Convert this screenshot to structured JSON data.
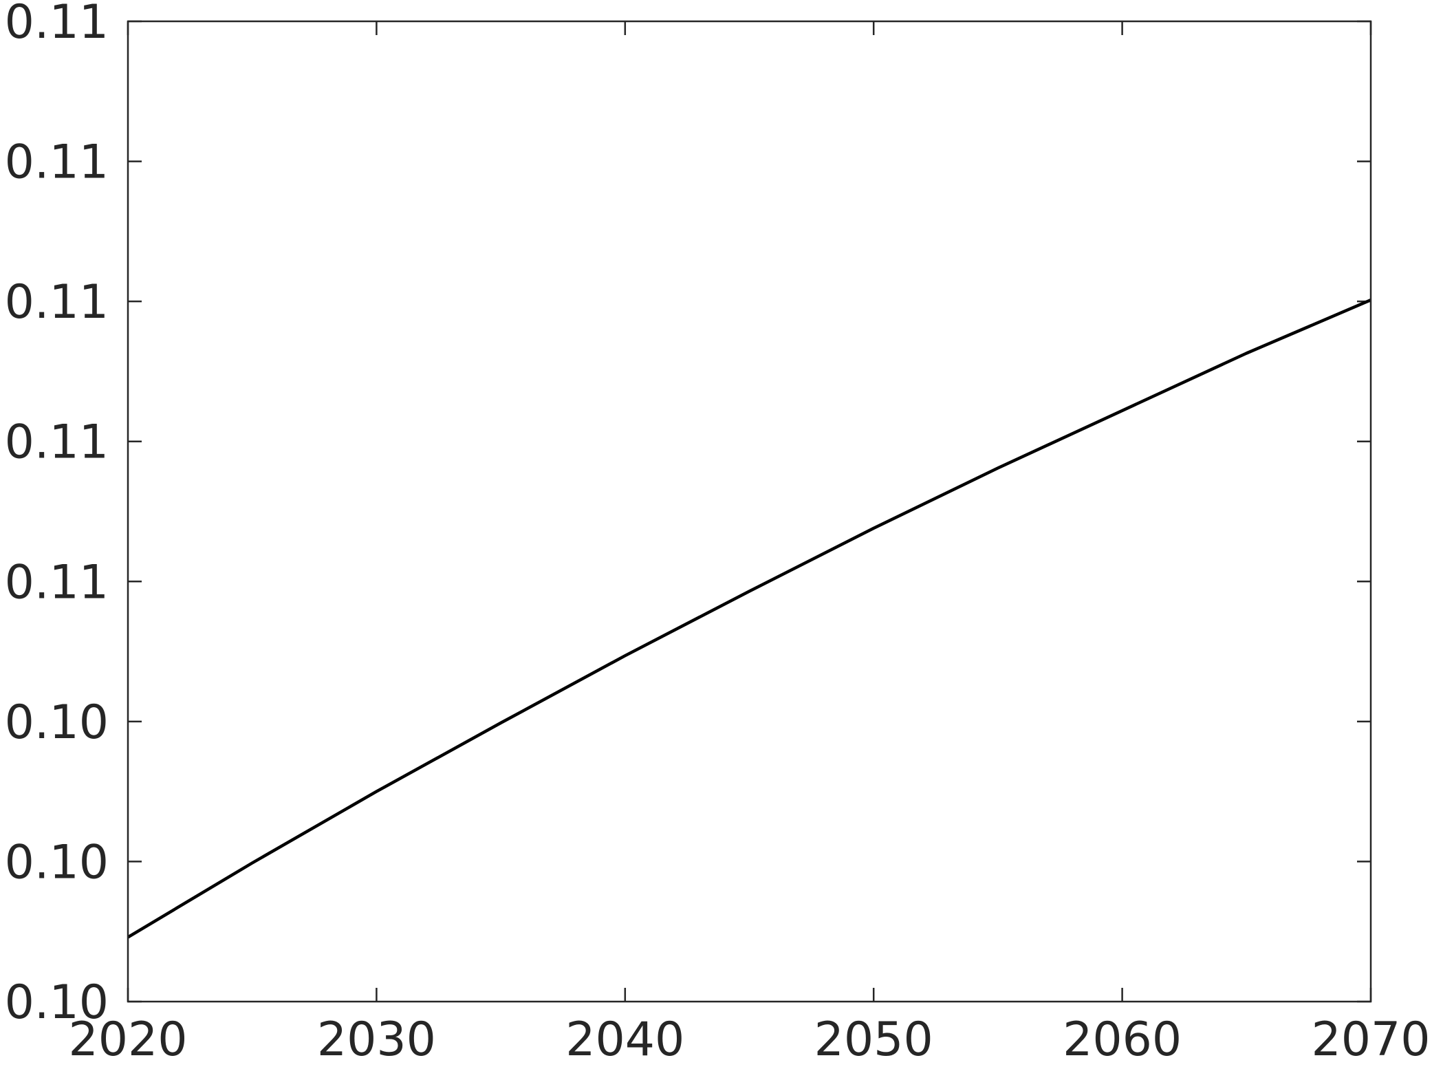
{
  "chart_data": {
    "type": "line",
    "title": "",
    "xlabel": "",
    "ylabel": "",
    "grid": false,
    "xlim": [
      2020,
      2070
    ],
    "ylim": [
      0.1025,
      0.1095
    ],
    "x_ticks": [
      2020,
      2030,
      2040,
      2050,
      2060,
      2070
    ],
    "x_tick_labels": [
      "2020",
      "2030",
      "2040",
      "2050",
      "2060",
      "2070"
    ],
    "y_ticks": [
      0.1025,
      0.1035,
      0.1045,
      0.1055,
      0.1065,
      0.1075,
      0.1085,
      0.1095
    ],
    "y_tick_labels": [
      "0.10",
      "0.10",
      "0.10",
      "0.11",
      "0.11",
      "0.11",
      "0.11",
      "0.11"
    ],
    "series": [
      {
        "color": "#000000",
        "x": [
          2020,
          2025,
          2030,
          2035,
          2040,
          2045,
          2050,
          2055,
          2060,
          2065,
          2070
        ],
        "y": [
          0.10296,
          0.10349,
          0.104,
          0.10449,
          0.10497,
          0.10543,
          0.10588,
          0.10631,
          0.10672,
          0.10713,
          0.10751
        ]
      }
    ]
  }
}
